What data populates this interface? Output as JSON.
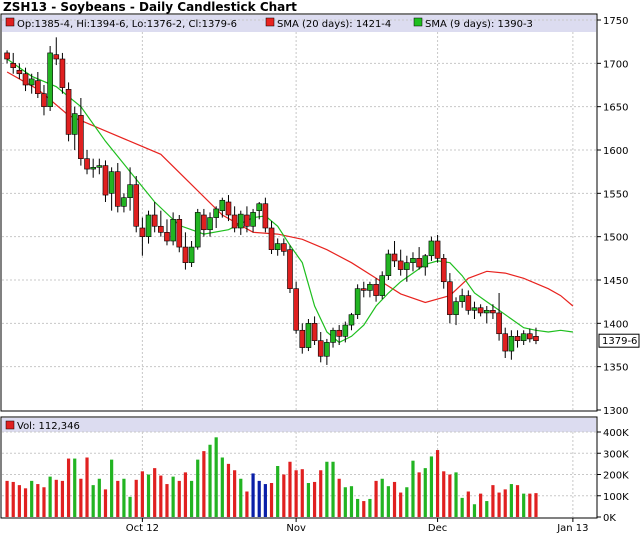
{
  "title": "ZSH13 - Soybeans - Daily Candlestick Chart",
  "legend": {
    "ohlc": "Op:1385-4, Hi:1394-6, Lo:1376-2, Cl:1379-6",
    "sma20": "SMA (20 days): 1421-4",
    "sma9": "SMA (9 days): 1390-3",
    "sma20_color": "#e8231f",
    "sma9_color": "#1fbf1f"
  },
  "last_price_label": "1379-6",
  "volume_legend": "Vol: 112,346",
  "colors": {
    "up": "#22b422",
    "down": "#e02020",
    "wick": "#000000",
    "panel_background": "#ffffff",
    "legend_band": "#dcdcf0",
    "grid": "#c8c8c8",
    "volume_highlight": "#0a1fa8"
  },
  "chart_data": [
    {
      "type": "candlestick",
      "title": "ZSH13 - Soybeans - Daily Candlestick Chart",
      "price_ylim": [
        1300,
        1750
      ],
      "y_ticks": [
        1300,
        1350,
        1400,
        1450,
        1500,
        1550,
        1600,
        1650,
        1700,
        1750
      ],
      "y_tick_labels": [
        "1300",
        "1350",
        "1400",
        "1450",
        "1500",
        "1550",
        "1600",
        "1650",
        "1700",
        "1750"
      ],
      "x_tick_labels": [
        {
          "label": "Oct 12",
          "index": 22
        },
        {
          "label": "Nov",
          "index": 47
        },
        {
          "label": "Dec",
          "index": 70
        },
        {
          "label": "Jan 13",
          "index": 92
        }
      ],
      "grid": true,
      "legend_position": "top",
      "candles": [
        [
          1712,
          1715,
          1700,
          1705
        ],
        [
          1700,
          1712,
          1688,
          1695
        ],
        [
          1692,
          1700,
          1682,
          1688
        ],
        [
          1688,
          1695,
          1668,
          1675
        ],
        [
          1675,
          1688,
          1665,
          1682
        ],
        [
          1680,
          1690,
          1660,
          1665
        ],
        [
          1665,
          1675,
          1640,
          1650
        ],
        [
          1650,
          1720,
          1645,
          1712
        ],
        [
          1710,
          1730,
          1698,
          1705
        ],
        [
          1705,
          1712,
          1665,
          1672
        ],
        [
          1670,
          1678,
          1610,
          1618
        ],
        [
          1618,
          1650,
          1600,
          1642
        ],
        [
          1640,
          1660,
          1582,
          1590
        ],
        [
          1590,
          1600,
          1572,
          1578
        ],
        [
          1578,
          1590,
          1568,
          1580
        ],
        [
          1580,
          1590,
          1572,
          1582
        ],
        [
          1582,
          1588,
          1540,
          1548
        ],
        [
          1550,
          1580,
          1530,
          1575
        ],
        [
          1575,
          1585,
          1528,
          1535
        ],
        [
          1535,
          1550,
          1528,
          1545
        ],
        [
          1545,
          1580,
          1530,
          1560
        ],
        [
          1560,
          1570,
          1505,
          1512
        ],
        [
          1510,
          1522,
          1478,
          1500
        ],
        [
          1500,
          1530,
          1492,
          1525
        ],
        [
          1525,
          1540,
          1505,
          1512
        ],
        [
          1512,
          1530,
          1500,
          1505
        ],
        [
          1505,
          1520,
          1490,
          1495
        ],
        [
          1495,
          1528,
          1490,
          1520
        ],
        [
          1520,
          1525,
          1482,
          1488
        ],
        [
          1488,
          1505,
          1462,
          1470
        ],
        [
          1470,
          1495,
          1465,
          1488
        ],
        [
          1488,
          1532,
          1485,
          1528
        ],
        [
          1525,
          1532,
          1500,
          1508
        ],
        [
          1508,
          1528,
          1500,
          1522
        ],
        [
          1522,
          1535,
          1510,
          1532
        ],
        [
          1530,
          1545,
          1522,
          1542
        ],
        [
          1540,
          1548,
          1518,
          1525
        ],
        [
          1525,
          1535,
          1505,
          1510
        ],
        [
          1510,
          1530,
          1502,
          1526
        ],
        [
          1525,
          1535,
          1505,
          1512
        ],
        [
          1512,
          1532,
          1505,
          1528
        ],
        [
          1530,
          1540,
          1520,
          1538
        ],
        [
          1538,
          1545,
          1505,
          1510
        ],
        [
          1510,
          1518,
          1480,
          1485
        ],
        [
          1485,
          1498,
          1478,
          1492
        ],
        [
          1492,
          1498,
          1478,
          1483
        ],
        [
          1485,
          1490,
          1435,
          1440
        ],
        [
          1440,
          1448,
          1388,
          1392
        ],
        [
          1392,
          1400,
          1365,
          1372
        ],
        [
          1372,
          1405,
          1368,
          1400
        ],
        [
          1400,
          1408,
          1375,
          1380
        ],
        [
          1380,
          1390,
          1355,
          1362
        ],
        [
          1362,
          1382,
          1352,
          1378
        ],
        [
          1378,
          1395,
          1372,
          1392
        ],
        [
          1392,
          1398,
          1375,
          1385
        ],
        [
          1385,
          1402,
          1378,
          1398
        ],
        [
          1398,
          1412,
          1392,
          1410
        ],
        [
          1410,
          1445,
          1405,
          1440
        ],
        [
          1440,
          1448,
          1430,
          1438
        ],
        [
          1438,
          1448,
          1430,
          1445
        ],
        [
          1445,
          1452,
          1425,
          1432
        ],
        [
          1432,
          1460,
          1428,
          1455
        ],
        [
          1455,
          1485,
          1450,
          1480
        ],
        [
          1480,
          1495,
          1465,
          1472
        ],
        [
          1472,
          1485,
          1455,
          1462
        ],
        [
          1462,
          1478,
          1448,
          1470
        ],
        [
          1470,
          1482,
          1460,
          1475
        ],
        [
          1475,
          1488,
          1462,
          1465
        ],
        [
          1465,
          1480,
          1455,
          1478
        ],
        [
          1478,
          1500,
          1472,
          1495
        ],
        [
          1495,
          1502,
          1470,
          1475
        ],
        [
          1475,
          1480,
          1440,
          1448
        ],
        [
          1448,
          1458,
          1400,
          1410
        ],
        [
          1410,
          1430,
          1398,
          1425
        ],
        [
          1425,
          1440,
          1418,
          1432
        ],
        [
          1432,
          1438,
          1410,
          1415
        ],
        [
          1415,
          1425,
          1405,
          1418
        ],
        [
          1418,
          1422,
          1408,
          1412
        ],
        [
          1412,
          1420,
          1400,
          1415
        ],
        [
          1415,
          1422,
          1405,
          1412
        ],
        [
          1412,
          1435,
          1380,
          1388
        ],
        [
          1388,
          1395,
          1360,
          1368
        ],
        [
          1368,
          1392,
          1358,
          1385
        ],
        [
          1385,
          1392,
          1372,
          1380
        ],
        [
          1380,
          1392,
          1375,
          1388
        ],
        [
          1388,
          1394,
          1378,
          1382
        ],
        [
          1385,
          1395,
          1376,
          1380
        ]
      ],
      "volume": [
        170000,
        165000,
        150000,
        135000,
        170000,
        155000,
        140000,
        190000,
        175000,
        170000,
        275000,
        275000,
        180000,
        280000,
        150000,
        180000,
        130000,
        270000,
        170000,
        180000,
        95000,
        175000,
        215000,
        200000,
        230000,
        195000,
        155000,
        190000,
        170000,
        210000,
        170000,
        270000,
        310000,
        340000,
        375000,
        280000,
        250000,
        220000,
        180000,
        120000,
        205000,
        170000,
        155000,
        160000,
        240000,
        200000,
        260000,
        220000,
        225000,
        160000,
        165000,
        220000,
        260000,
        260000,
        180000,
        140000,
        145000,
        85000,
        75000,
        85000,
        170000,
        180000,
        145000,
        165000,
        115000,
        140000,
        265000,
        210000,
        230000,
        285000,
        315000,
        215000,
        200000,
        210000,
        90000,
        120000,
        60000,
        110000,
        75000,
        150000,
        115000,
        130000,
        155000,
        150000,
        110000,
        110000,
        112346
      ],
      "volume_highlight_indices": [
        40,
        41,
        42
      ],
      "volume_ylim": [
        0,
        400000
      ],
      "volume_ticks": [
        0,
        100000,
        200000,
        300000,
        400000
      ],
      "volume_tick_labels": [
        "0K",
        "100K",
        "200K",
        "300K",
        "400K"
      ],
      "sma20": [
        [
          0,
          1690
        ],
        [
          5,
          1670
        ],
        [
          10,
          1640
        ],
        [
          15,
          1625
        ],
        [
          20,
          1610
        ],
        [
          25,
          1595
        ],
        [
          30,
          1560
        ],
        [
          35,
          1525
        ],
        [
          40,
          1505
        ],
        [
          44,
          1503
        ],
        [
          48,
          1497
        ],
        [
          52,
          1485
        ],
        [
          56,
          1470
        ],
        [
          60,
          1452
        ],
        [
          64,
          1434
        ],
        [
          68,
          1424
        ],
        [
          72,
          1432
        ],
        [
          75,
          1452
        ],
        [
          78,
          1460
        ],
        [
          81,
          1458
        ],
        [
          84,
          1452
        ],
        [
          88,
          1440
        ],
        [
          90,
          1432
        ],
        [
          92,
          1420
        ]
      ],
      "sma9": [
        [
          0,
          1705
        ],
        [
          4,
          1685
        ],
        [
          8,
          1673
        ],
        [
          12,
          1650
        ],
        [
          16,
          1610
        ],
        [
          20,
          1575
        ],
        [
          24,
          1540
        ],
        [
          28,
          1513
        ],
        [
          32,
          1503
        ],
        [
          36,
          1508
        ],
        [
          40,
          1522
        ],
        [
          42,
          1524
        ],
        [
          44,
          1512
        ],
        [
          46,
          1490
        ],
        [
          48,
          1470
        ],
        [
          50,
          1420
        ],
        [
          52,
          1390
        ],
        [
          54,
          1378
        ],
        [
          56,
          1385
        ],
        [
          58,
          1398
        ],
        [
          60,
          1420
        ],
        [
          62,
          1435
        ],
        [
          64,
          1448
        ],
        [
          66,
          1458
        ],
        [
          68,
          1468
        ],
        [
          70,
          1472
        ],
        [
          72,
          1470
        ],
        [
          74,
          1455
        ],
        [
          76,
          1435
        ],
        [
          78,
          1425
        ],
        [
          80,
          1415
        ],
        [
          82,
          1405
        ],
        [
          84,
          1395
        ],
        [
          86,
          1392
        ],
        [
          88,
          1390
        ],
        [
          90,
          1392
        ],
        [
          92,
          1390
        ]
      ]
    }
  ]
}
